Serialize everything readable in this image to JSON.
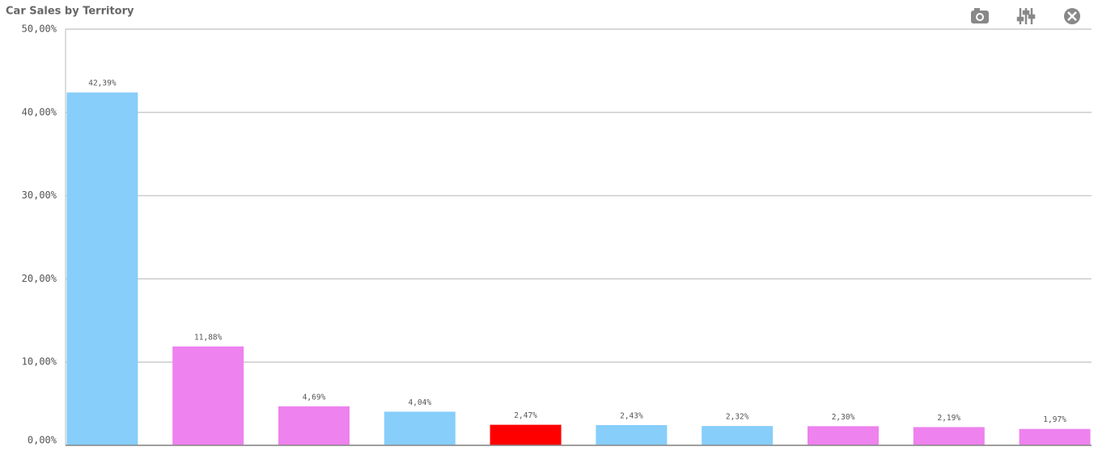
{
  "chart_data": {
    "type": "bar",
    "title": "Car Sales by Territory",
    "values": [
      42.39,
      11.88,
      4.69,
      4.04,
      2.47,
      2.43,
      2.32,
      2.3,
      2.19,
      1.97
    ],
    "value_labels": [
      "42,39%",
      "11,88%",
      "4,69%",
      "4,04%",
      "2,47%",
      "2,43%",
      "2,32%",
      "2,30%",
      "2,19%",
      "1,97%"
    ],
    "colors": [
      "#87cefa",
      "#ee82ee",
      "#ee82ee",
      "#87cefa",
      "#ff0000",
      "#87cefa",
      "#87cefa",
      "#ee82ee",
      "#ee82ee",
      "#ee82ee"
    ],
    "ylim": [
      0,
      50
    ],
    "yticks": [
      {
        "value": 0,
        "label": "0,00%"
      },
      {
        "value": 10,
        "label": "10,00%"
      },
      {
        "value": 20,
        "label": "20,00%"
      },
      {
        "value": 30,
        "label": "30,00%"
      },
      {
        "value": 40,
        "label": "40,00%"
      },
      {
        "value": 50,
        "label": "50,00%"
      }
    ],
    "grid": true
  }
}
